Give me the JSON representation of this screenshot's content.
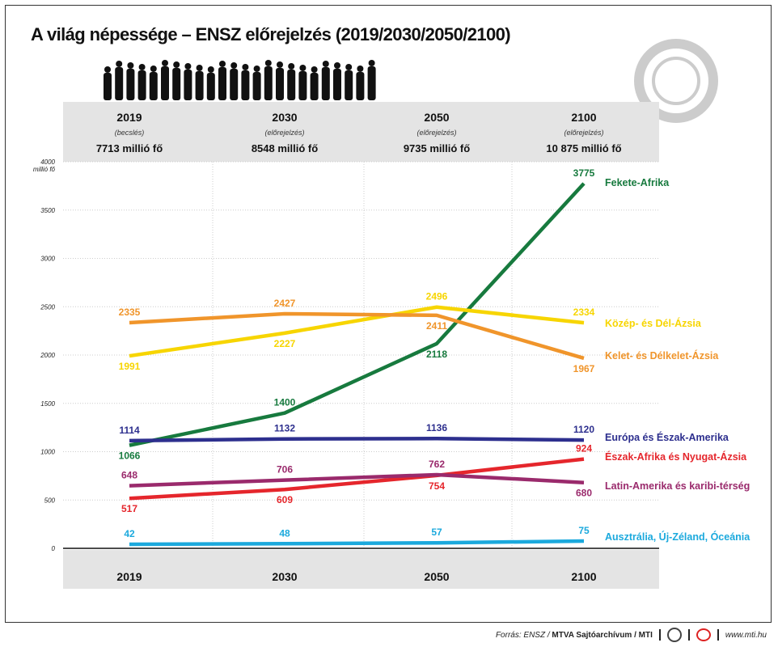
{
  "title": "A világ népessége – ENSZ előrejelzés (2019/2030/2050/2100)",
  "header": [
    {
      "year": "2019",
      "note": "(becslés)",
      "total": "7713 millió fő"
    },
    {
      "year": "2030",
      "note": "(előrejelzés)",
      "total": "8548 millió fő"
    },
    {
      "year": "2050",
      "note": "(előrejelzés)",
      "total": "9735 millió fő"
    },
    {
      "year": "2100",
      "note": "(előrejelzés)",
      "total": "10 875 millió fő"
    }
  ],
  "footer": {
    "source_prefix": "Forrás: ENSZ / ",
    "source_bold": "MTVA Sajtóarchívum / MTI",
    "url": "www.mti.hu",
    "logo_text": "MTVA"
  },
  "chart_data": {
    "type": "line",
    "title": "A világ népessége – ENSZ előrejelzés (2019/2030/2050/2100)",
    "ylabel": "millió fő",
    "ylim": [
      0,
      4000
    ],
    "yticks": [
      0,
      500,
      1000,
      1500,
      2000,
      2500,
      3000,
      3500,
      4000
    ],
    "categories": [
      "2019",
      "2030",
      "2050",
      "2100"
    ],
    "legend": "right",
    "series": [
      {
        "name": "Fekete-Afrika",
        "color": "#177a3e",
        "values": [
          1066,
          1400,
          2118,
          3775
        ],
        "labelPos": [
          "below",
          "above",
          "below",
          "above"
        ]
      },
      {
        "name": "Közép- és Dél-Ázsia",
        "color": "#f7d500",
        "values": [
          1991,
          2227,
          2496,
          2334
        ],
        "labelPos": [
          "below",
          "below",
          "above",
          "above"
        ]
      },
      {
        "name": "Kelet- és Délkelet-Ázsia",
        "color": "#f0952b",
        "values": [
          2335,
          2427,
          2411,
          1967
        ],
        "labelPos": [
          "above",
          "above",
          "below",
          "below"
        ]
      },
      {
        "name": "Európa és Észak-Amerika",
        "color": "#2d2f8e",
        "values": [
          1114,
          1132,
          1136,
          1120
        ],
        "labelPos": [
          "above",
          "above",
          "above",
          "above"
        ]
      },
      {
        "name": "Észak-Afrika és Nyugat-Ázsia",
        "color": "#e5262c",
        "values": [
          517,
          609,
          754,
          924
        ],
        "labelPos": [
          "below",
          "below",
          "below",
          "above"
        ]
      },
      {
        "name": "Latin-Amerika és karibi-térség",
        "color": "#9a2a6c",
        "values": [
          648,
          706,
          762,
          680
        ],
        "labelPos": [
          "above",
          "above",
          "above",
          "below"
        ]
      },
      {
        "name": "Ausztrália, Új-Zéland, Óceánia",
        "color": "#1ba9dd",
        "values": [
          42,
          48,
          57,
          75
        ],
        "labelPos": [
          "above",
          "above",
          "above",
          "above"
        ]
      }
    ]
  }
}
